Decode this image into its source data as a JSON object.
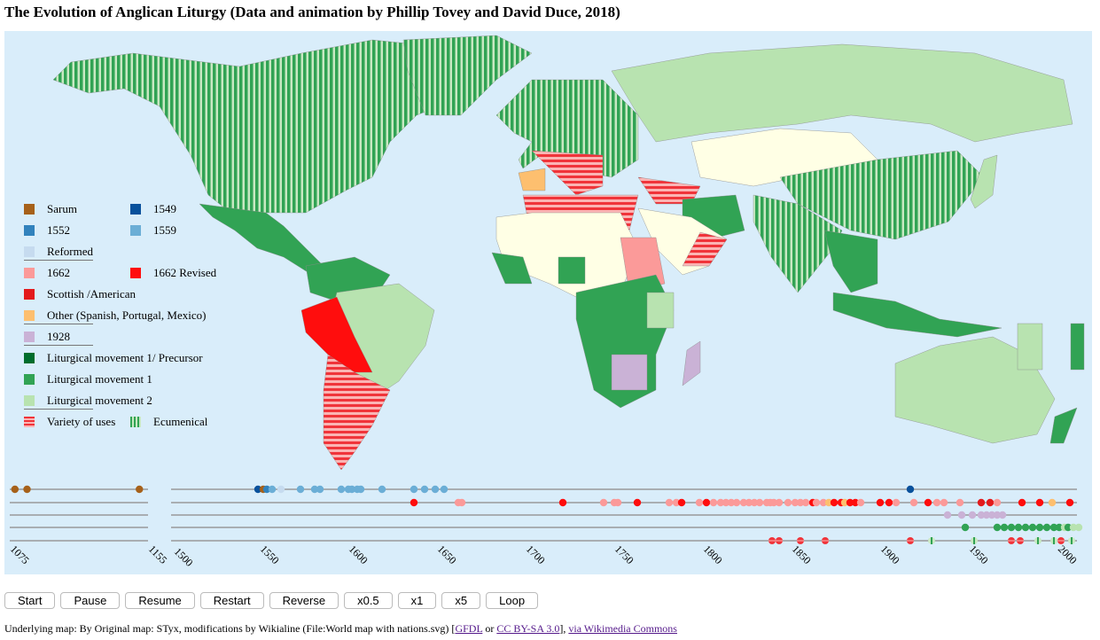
{
  "title": "The Evolution of Anglican Liturgy (Data and animation by Phillip Tovey and David Duce, 2018)",
  "legend": [
    {
      "label": "Sarum",
      "color": "#a6611a"
    },
    {
      "label": "1549",
      "color": "#08519c"
    },
    {
      "label": "1552",
      "color": "#3182bd"
    },
    {
      "label": "1559",
      "color": "#6baed6"
    },
    {
      "label": "Reformed",
      "color": "#c6dbef"
    },
    {
      "label": "1662",
      "color": "#fb9a99"
    },
    {
      "label": "1662 Revised",
      "color": "#ff0d0d"
    },
    {
      "label": "Scottish /American",
      "color": "#e31a1c"
    },
    {
      "label": "Other (Spanish, Portugal, Mexico)",
      "color": "#fdbf6f"
    },
    {
      "label": "1928",
      "color": "#cab2d6"
    },
    {
      "label": "Liturgical movement 1/ Precursor",
      "color": "#006d2c"
    },
    {
      "label": "Liturgical movement 1",
      "color": "#31a354"
    },
    {
      "label": "Liturgical movement 2",
      "color": "#b8e3b0"
    },
    {
      "label": "Variety of uses",
      "color": "#f0343a"
    },
    {
      "label": "Ecumenical",
      "color": "#31a354"
    }
  ],
  "chart_data": {
    "type": "scatter",
    "segments": [
      {
        "range": [
          1075,
          1155
        ],
        "ticks": [
          "1075",
          "1155"
        ]
      },
      {
        "range": [
          1500,
          2011
        ],
        "ticks": [
          "1500",
          "1550",
          "1600",
          "1650",
          "1700",
          "1750",
          "1800",
          "1850",
          "1900",
          "1950",
          "2000"
        ]
      }
    ],
    "rows": [
      {
        "name": "Sarum / 1549 / 1552 / 1559 / Reformed",
        "points": [
          [
            1078,
            "Sarum"
          ],
          [
            1085,
            "Sarum"
          ],
          [
            1150,
            "Sarum"
          ],
          [
            1549,
            "1549"
          ],
          [
            1552,
            "Sarum"
          ],
          [
            1554,
            "1552"
          ],
          [
            1557,
            "1559"
          ],
          [
            1562,
            "Reformed"
          ],
          [
            1573,
            "1559"
          ],
          [
            1581,
            "1559"
          ],
          [
            1584,
            "1559"
          ],
          [
            1596,
            "1559"
          ],
          [
            1600,
            "1559"
          ],
          [
            1602,
            "1559"
          ],
          [
            1605,
            "1559"
          ],
          [
            1607,
            "1559"
          ],
          [
            1619,
            "1559"
          ],
          [
            1637,
            "1559"
          ],
          [
            1643,
            "1559"
          ],
          [
            1649,
            "1559"
          ],
          [
            1654,
            "1559"
          ],
          [
            1917,
            "1549"
          ]
        ]
      },
      {
        "name": "1662 / Revised / Scottish / Other",
        "points": [
          [
            1637,
            "1662 Revised"
          ],
          [
            1662,
            "1662"
          ],
          [
            1664,
            "1662"
          ],
          [
            1721,
            "1662 Revised"
          ],
          [
            1744,
            "1662"
          ],
          [
            1750,
            "1662"
          ],
          [
            1752,
            "1662"
          ],
          [
            1763,
            "1662 Revised"
          ],
          [
            1781,
            "1662"
          ],
          [
            1785,
            "1662"
          ],
          [
            1788,
            "1662 Revised"
          ],
          [
            1798,
            "1662"
          ],
          [
            1802,
            "1662 Revised"
          ],
          [
            1806,
            "1662"
          ],
          [
            1810,
            "1662"
          ],
          [
            1813,
            "1662"
          ],
          [
            1816,
            "1662"
          ],
          [
            1819,
            "1662"
          ],
          [
            1823,
            "1662"
          ],
          [
            1826,
            "1662"
          ],
          [
            1829,
            "1662"
          ],
          [
            1832,
            "1662"
          ],
          [
            1836,
            "1662"
          ],
          [
            1838,
            "1662"
          ],
          [
            1840,
            "1662"
          ],
          [
            1843,
            "1662"
          ],
          [
            1848,
            "1662"
          ],
          [
            1852,
            "1662"
          ],
          [
            1855,
            "1662"
          ],
          [
            1858,
            "1662"
          ],
          [
            1862,
            "1662 Revised"
          ],
          [
            1864,
            "1662"
          ],
          [
            1868,
            "1662"
          ],
          [
            1871,
            "Other"
          ],
          [
            1874,
            "1662 Revised"
          ],
          [
            1878,
            "1662 Revised"
          ],
          [
            1880,
            "Other"
          ],
          [
            1883,
            "1662 Revised"
          ],
          [
            1886,
            "1662 Revised"
          ],
          [
            1889,
            "1662"
          ],
          [
            1900,
            "1662 Revised"
          ],
          [
            1905,
            "1662 Revised"
          ],
          [
            1909,
            "1662"
          ],
          [
            1919,
            "1662"
          ],
          [
            1927,
            "1662 Revised"
          ],
          [
            1932,
            "1662"
          ],
          [
            1936,
            "1662"
          ],
          [
            1945,
            "1662"
          ],
          [
            1957,
            "Scottish"
          ],
          [
            1962,
            "Scottish"
          ],
          [
            1966,
            "1662"
          ],
          [
            1980,
            "1662 Revised"
          ],
          [
            1990,
            "1662 Revised"
          ],
          [
            1997,
            "Other"
          ],
          [
            2007,
            "1662 Revised"
          ]
        ]
      },
      {
        "name": "1928",
        "points": [
          [
            1938,
            "1928"
          ],
          [
            1946,
            "1928"
          ],
          [
            1952,
            "1928"
          ],
          [
            1957,
            "1928"
          ],
          [
            1960,
            "1928"
          ],
          [
            1963,
            "1928"
          ],
          [
            1966,
            "1928"
          ],
          [
            1969,
            "1928"
          ]
        ]
      },
      {
        "name": "Liturgical movement",
        "points": [
          [
            1948,
            "LM1"
          ],
          [
            1966,
            "LM1"
          ],
          [
            1970,
            "LM1"
          ],
          [
            1974,
            "LM1"
          ],
          [
            1978,
            "LM1"
          ],
          [
            1982,
            "LM1"
          ],
          [
            1986,
            "LM1"
          ],
          [
            1990,
            "LM1"
          ],
          [
            1994,
            "LM1"
          ],
          [
            1998,
            "LM1"
          ],
          [
            2001,
            "LM1"
          ],
          [
            2004,
            "LM2"
          ],
          [
            2006,
            "LM1"
          ],
          [
            2009,
            "LM2"
          ],
          [
            2012,
            "LM2"
          ]
        ]
      },
      {
        "name": "Variety / Ecumenical",
        "points": [
          [
            1839,
            "Variety"
          ],
          [
            1843,
            "Variety"
          ],
          [
            1855,
            "Variety"
          ],
          [
            1869,
            "Variety"
          ],
          [
            1917,
            "Variety"
          ],
          [
            1929,
            "Ecumenical"
          ],
          [
            1953,
            "Ecumenical"
          ],
          [
            1974,
            "Variety"
          ],
          [
            1979,
            "Variety"
          ],
          [
            1989,
            "Ecumenical"
          ],
          [
            1998,
            "Ecumenical"
          ],
          [
            2002,
            "Variety"
          ],
          [
            2008,
            "Ecumenical"
          ]
        ]
      }
    ]
  },
  "controls": [
    "Start",
    "Pause",
    "Resume",
    "Restart",
    "Reverse",
    "x0.5",
    "x1",
    "x5",
    "Loop"
  ],
  "footer": {
    "text": "Underlying map: By Original map: STyx, modifications by Wikialine (File:World map with nations.svg) [",
    "link1": "GFDL",
    "or": " or ",
    "link2": "CC BY-SA 3.0",
    "mid": "], ",
    "link3": "via Wikimedia Commons"
  }
}
